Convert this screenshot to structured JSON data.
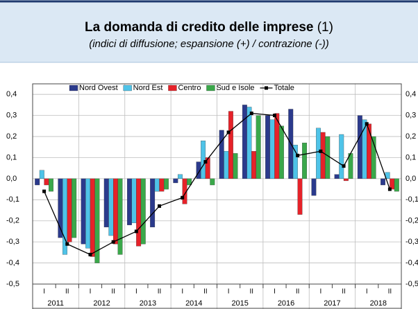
{
  "chart_data": {
    "type": "bar",
    "title": "La domanda di credito delle imprese",
    "title_note": "(1)",
    "subtitle": "(indici di diffusione; espansione (+) / contrazione (-))",
    "categories": [
      "I",
      "II",
      "I",
      "II",
      "I",
      "II",
      "I",
      "II",
      "I",
      "II",
      "I",
      "II",
      "I",
      "II",
      "I",
      "II"
    ],
    "years": [
      "2011",
      "2012",
      "2013",
      "2014",
      "2015",
      "2016",
      "2017",
      "2018"
    ],
    "ylim": [
      -0.5,
      0.45
    ],
    "yticks": [
      {
        "value": 0.4,
        "label": "0,4"
      },
      {
        "value": 0.3,
        "label": "0,3"
      },
      {
        "value": 0.2,
        "label": "0,2"
      },
      {
        "value": 0.1,
        "label": "0,1"
      },
      {
        "value": 0,
        "label": "0,0"
      },
      {
        "value": -0.1,
        "label": "-0,1"
      },
      {
        "value": -0.2,
        "label": "-0,2"
      },
      {
        "value": -0.3,
        "label": "-0,3"
      },
      {
        "value": -0.4,
        "label": "-0,4"
      },
      {
        "value": -0.5,
        "label": "-0,5"
      }
    ],
    "grid": true,
    "legend": "top",
    "series": [
      {
        "name": "Nord Ovest",
        "color": "#2b3a8c",
        "values": [
          -0.03,
          -0.28,
          -0.31,
          -0.23,
          -0.22,
          -0.23,
          -0.02,
          0.08,
          0.23,
          0.35,
          0.3,
          0.33,
          -0.08,
          0.02,
          0.3,
          -0.03
        ]
      },
      {
        "name": "Nord Est",
        "color": "#4fc3e8",
        "values": [
          0.04,
          -0.36,
          -0.33,
          -0.27,
          -0.21,
          -0.06,
          0.02,
          0.18,
          0.13,
          0.34,
          0.28,
          0.16,
          0.24,
          0.21,
          0.28,
          0.03
        ]
      },
      {
        "name": "Centro",
        "color": "#e62229",
        "values": [
          -0.03,
          -0.3,
          -0.37,
          -0.31,
          -0.32,
          -0.06,
          -0.12,
          0.1,
          0.32,
          0.13,
          0.31,
          -0.17,
          0.22,
          -0.01,
          0.26,
          -0.05
        ]
      },
      {
        "name": "Sud e Isole",
        "color": "#3aa84a",
        "values": [
          -0.06,
          -0.28,
          -0.4,
          -0.36,
          -0.31,
          -0.05,
          -0.03,
          -0.03,
          0.12,
          0.3,
          0.25,
          0.17,
          0.2,
          0.12,
          0.2,
          -0.06
        ]
      },
      {
        "name": "Totale",
        "type": "line",
        "color": "#000000",
        "values": [
          -0.06,
          -0.31,
          -0.36,
          -0.3,
          -0.25,
          -0.13,
          -0.09,
          0.08,
          0.22,
          0.31,
          0.3,
          0.11,
          0.13,
          0.06,
          0.26,
          -0.05
        ]
      }
    ]
  }
}
